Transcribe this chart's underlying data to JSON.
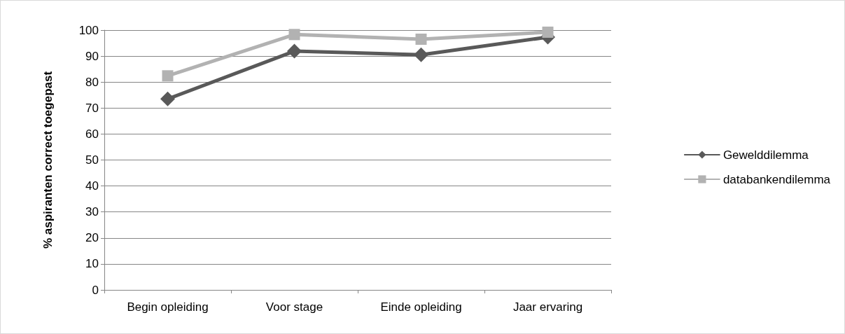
{
  "chart_data": {
    "type": "line",
    "ylabel": "% aspiranten correct toegepast",
    "categories": [
      "Begin opleiding",
      "Voor stage",
      "Einde opleiding",
      "Jaar ervaring"
    ],
    "series": [
      {
        "name": "Gewelddilemma",
        "color": "#595959",
        "marker": "diamond",
        "values": [
          73.5,
          91.9,
          90.5,
          97.3
        ]
      },
      {
        "name": "databankendilemma",
        "color": "#b2b2b2",
        "marker": "square",
        "values": [
          82.4,
          98.3,
          96.5,
          99.2
        ]
      }
    ],
    "ylim": [
      0,
      100
    ],
    "yticks": [
      0,
      10,
      20,
      30,
      40,
      50,
      60,
      70,
      80,
      90,
      100
    ],
    "grid": "y",
    "legend": "right",
    "line_style": "solid"
  }
}
